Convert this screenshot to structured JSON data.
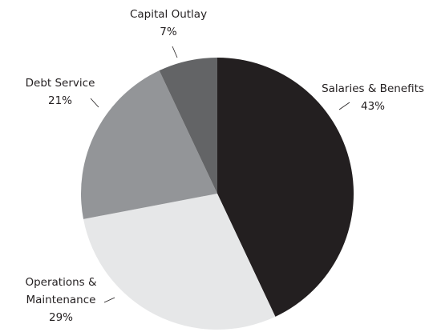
{
  "chart_data": {
    "type": "pie",
    "categories": [
      "Salaries & Benefits",
      "Operations & Maintenance",
      "Debt Service",
      "Capital Outlay"
    ],
    "values": [
      43,
      29,
      21,
      7
    ],
    "value_labels": [
      "43%",
      "29%",
      "21%",
      "7%"
    ],
    "colors": [
      "#231f20",
      "#e6e7e8",
      "#939598",
      "#636466"
    ],
    "start_angle": 0,
    "direction": "clockwise"
  }
}
